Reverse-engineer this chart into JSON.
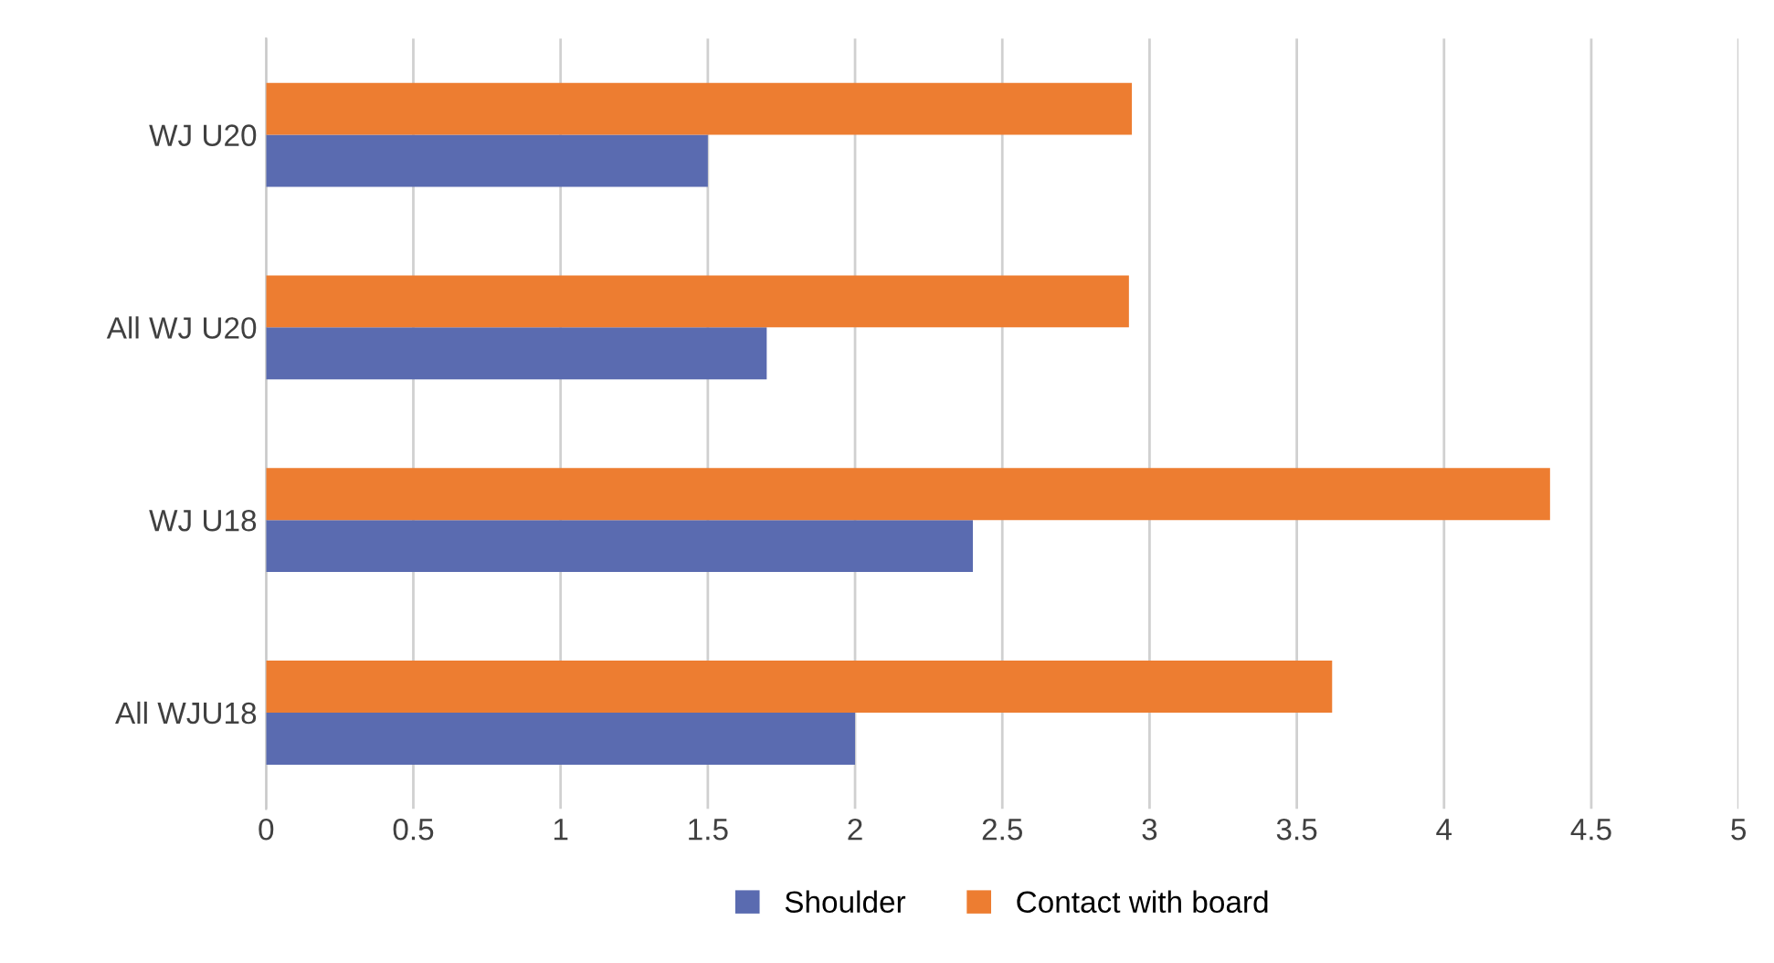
{
  "chart_data": {
    "type": "bar",
    "orientation": "horizontal",
    "categories": [
      "WJ U20",
      "All WJ U20",
      "WJ U18",
      "All WJU18"
    ],
    "series": [
      {
        "name": "Shoulder",
        "color": "#5a6bb0",
        "values": [
          1.5,
          1.7,
          2.4,
          2.0
        ]
      },
      {
        "name": "Contact with board",
        "color": "#ed7d31",
        "values": [
          2.94,
          2.93,
          4.36,
          3.62
        ]
      }
    ],
    "xlim": [
      0,
      5
    ],
    "xticks": [
      0,
      0.5,
      1,
      1.5,
      2,
      2.5,
      3,
      3.5,
      4,
      4.5,
      5
    ],
    "grid": "x",
    "legend": "bottom"
  }
}
